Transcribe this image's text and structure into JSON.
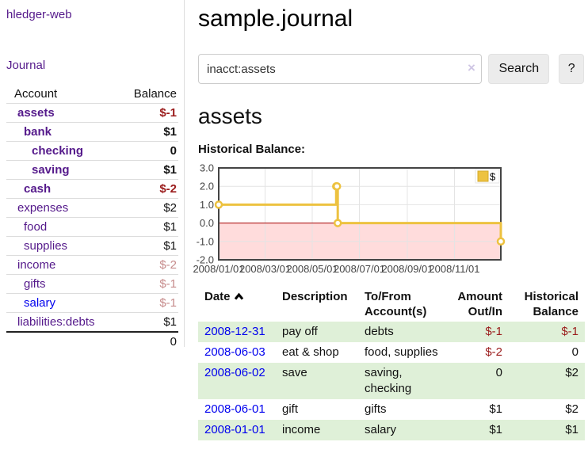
{
  "app": {
    "brand": "hledger-web"
  },
  "nav": {
    "journal": "Journal"
  },
  "sidebar": {
    "columns": {
      "account": "Account",
      "balance": "Balance"
    },
    "accounts": [
      {
        "name": "assets",
        "balance": "$-1"
      },
      {
        "name": "bank",
        "balance": "$1"
      },
      {
        "name": "checking",
        "balance": "0"
      },
      {
        "name": "saving",
        "balance": "$1"
      },
      {
        "name": "cash",
        "balance": "$-2"
      },
      {
        "name": "expenses",
        "balance": "$2"
      },
      {
        "name": "food",
        "balance": "$1"
      },
      {
        "name": "supplies",
        "balance": "$1"
      },
      {
        "name": "income",
        "balance": "$-2"
      },
      {
        "name": "gifts",
        "balance": "$-1"
      },
      {
        "name": "salary",
        "balance": "$-1"
      },
      {
        "name": "liabilities:debts",
        "balance": "$1"
      }
    ],
    "total": "0"
  },
  "header": {
    "title": "sample.journal"
  },
  "search": {
    "value": "inacct:assets",
    "clear_icon": "×",
    "search_button": "Search",
    "help_button": "?"
  },
  "account_view": {
    "heading": "assets",
    "chart_title": "Historical Balance:"
  },
  "chart_data": {
    "type": "line",
    "line_style": "step",
    "title": "Historical Balance",
    "series": [
      {
        "name": "$",
        "color": "#edc240",
        "points": [
          [
            "2008-01-01",
            1
          ],
          [
            "2008-06-01",
            2
          ],
          [
            "2008-06-02",
            2
          ],
          [
            "2008-06-03",
            0
          ],
          [
            "2008-12-31",
            -1
          ]
        ]
      }
    ],
    "ylim": [
      -2.0,
      3.0
    ],
    "yticks": [
      3.0,
      2.0,
      1.0,
      0.0,
      -1.0,
      -2.0
    ],
    "xticks": [
      "2008/01/01",
      "2008/03/01",
      "2008/05/01",
      "2008/07/01",
      "2008/09/01",
      "2008/11/01"
    ],
    "grid": true,
    "grid_color": "#e4e4e4",
    "negative_region_color": "#ffdcdc",
    "zero_line_color": "#a40000",
    "legend_position": "top-right"
  },
  "register": {
    "columns": {
      "date": "Date",
      "description": "Description",
      "accounts": "To/From Account(s)",
      "amount": "Amount Out/In",
      "balance": "Historical Balance"
    },
    "rows": [
      {
        "date": "2008-12-31",
        "description": "pay off",
        "accounts": "debts",
        "amount": "$-1",
        "balance": "$-1"
      },
      {
        "date": "2008-06-03",
        "description": "eat & shop",
        "accounts": "food, supplies",
        "amount": "$-2",
        "balance": "0"
      },
      {
        "date": "2008-06-02",
        "description": "save",
        "accounts": "saving,\nchecking",
        "amount": "0",
        "balance": "$2"
      },
      {
        "date": "2008-06-01",
        "description": "gift",
        "accounts": "gifts",
        "amount": "$1",
        "balance": "$2"
      },
      {
        "date": "2008-01-01",
        "description": "income",
        "accounts": "salary",
        "amount": "$1",
        "balance": "$1"
      }
    ]
  },
  "colors": {
    "accent_purple": "#551a8b",
    "link_blue": "#0000ee",
    "negative_strong": "#9a1b1b",
    "negative_muted": "#c68b8b",
    "row_stripe_green": "#dff0d8",
    "chart_line_gold": "#edc240"
  }
}
